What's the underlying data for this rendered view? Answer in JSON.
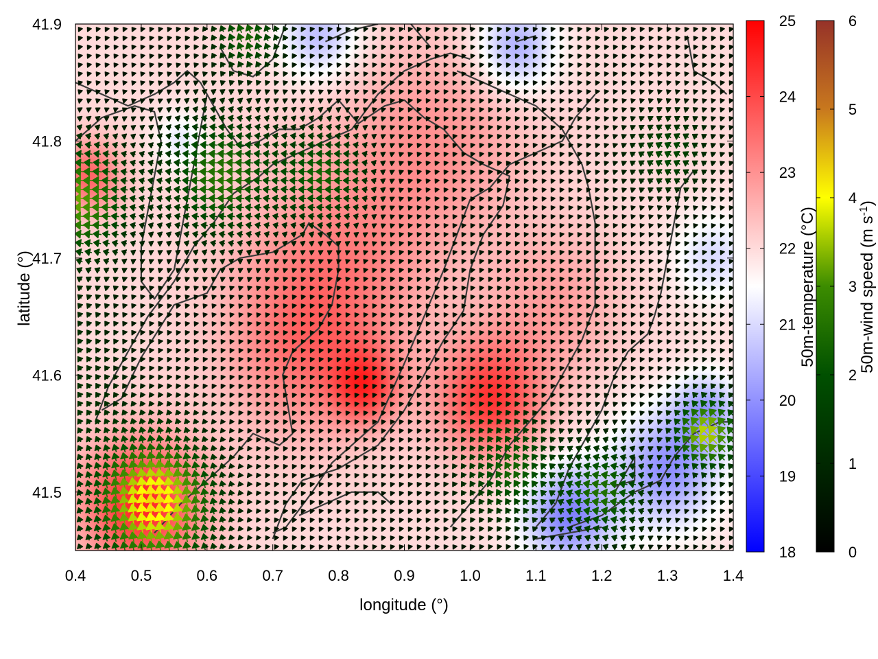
{
  "chart_data": {
    "type": "heatmap",
    "title": "",
    "xlabel": "longitude (°)",
    "ylabel": "latitude (°)",
    "xlim": [
      0.4,
      1.4
    ],
    "ylim": [
      41.45,
      41.9
    ],
    "x_ticks": [
      {
        "value": 0.4,
        "label": "0.4"
      },
      {
        "value": 0.5,
        "label": "0.5"
      },
      {
        "value": 0.6,
        "label": "0.6"
      },
      {
        "value": 0.7,
        "label": "0.7"
      },
      {
        "value": 0.8,
        "label": "0.8"
      },
      {
        "value": 0.9,
        "label": "0.9"
      },
      {
        "value": 1.0,
        "label": "1.0"
      },
      {
        "value": 1.1,
        "label": "1.1"
      },
      {
        "value": 1.2,
        "label": "1.2"
      },
      {
        "value": 1.3,
        "label": "1.3"
      },
      {
        "value": 1.4,
        "label": "1.4"
      }
    ],
    "y_ticks": [
      {
        "value": 41.5,
        "label": "41.5"
      },
      {
        "value": 41.6,
        "label": "41.6"
      },
      {
        "value": 41.7,
        "label": "41.7"
      },
      {
        "value": 41.8,
        "label": "41.8"
      },
      {
        "value": 41.9,
        "label": "41.9"
      }
    ],
    "grid": false,
    "temperature_colorbar": {
      "label": "50m-temperature (°C)",
      "range": [
        18,
        25
      ],
      "ticks": [
        {
          "value": 18,
          "label": "18"
        },
        {
          "value": 19,
          "label": "19"
        },
        {
          "value": 20,
          "label": "20"
        },
        {
          "value": 21,
          "label": "21"
        },
        {
          "value": 22,
          "label": "22"
        },
        {
          "value": 23,
          "label": "23"
        },
        {
          "value": 24,
          "label": "24"
        },
        {
          "value": 25,
          "label": "25"
        }
      ],
      "colors": [
        "#0000ff",
        "#ffffff",
        "#ff0000"
      ],
      "midpoint": 21.5
    },
    "wind_colorbar": {
      "label": "50m-wind speed (m s",
      "label_superscript": "-1",
      "label_suffix": ")",
      "range": [
        0,
        6
      ],
      "ticks": [
        {
          "value": 0,
          "label": "0"
        },
        {
          "value": 1,
          "label": "1"
        },
        {
          "value": 2,
          "label": "2"
        },
        {
          "value": 3,
          "label": "3"
        },
        {
          "value": 4,
          "label": "4"
        },
        {
          "value": 5,
          "label": "5"
        },
        {
          "value": 6,
          "label": "6"
        }
      ],
      "colors": [
        "#000000",
        "#005000",
        "#3c8c00",
        "#ffff00",
        "#c8781e",
        "#963228"
      ],
      "color_stops": [
        0,
        2,
        3,
        4,
        5,
        6
      ]
    },
    "temperature_hotspots": [
      {
        "lon": 0.5,
        "lat": 41.49,
        "temp": 24.5,
        "radius": 0.09
      },
      {
        "lon": 0.42,
        "lat": 41.77,
        "temp": 23.6,
        "radius": 0.05
      },
      {
        "lon": 1.03,
        "lat": 41.58,
        "temp": 24.2,
        "radius": 0.08
      },
      {
        "lon": 0.84,
        "lat": 41.59,
        "temp": 23.8,
        "radius": 0.05
      },
      {
        "lon": 0.8,
        "lat": 41.7,
        "temp": 23.0,
        "radius": 0.15
      },
      {
        "lon": 0.95,
        "lat": 41.8,
        "temp": 22.9,
        "radius": 0.14
      },
      {
        "lon": 0.75,
        "lat": 41.62,
        "temp": 23.2,
        "radius": 0.12
      },
      {
        "lon": 1.13,
        "lat": 41.66,
        "temp": 22.8,
        "radius": 0.1
      },
      {
        "lon": 1.15,
        "lat": 41.48,
        "temp": 19.8,
        "radius": 0.07
      },
      {
        "lon": 1.3,
        "lat": 41.52,
        "temp": 20.0,
        "radius": 0.08
      },
      {
        "lon": 1.36,
        "lat": 41.57,
        "temp": 20.4,
        "radius": 0.05
      },
      {
        "lon": 0.77,
        "lat": 41.89,
        "temp": 20.6,
        "radius": 0.06
      },
      {
        "lon": 1.07,
        "lat": 41.88,
        "temp": 20.3,
        "radius": 0.06
      },
      {
        "lon": 1.37,
        "lat": 41.7,
        "temp": 21.0,
        "radius": 0.06
      },
      {
        "lon": 0.56,
        "lat": 41.8,
        "temp": 21.2,
        "radius": 0.04
      }
    ],
    "temperature_background": 22.0,
    "wind_regions": [
      {
        "lon": 0.52,
        "lat": 41.49,
        "u": -0.6,
        "v": 4.2,
        "radius": 0.09
      },
      {
        "lon": 0.4,
        "lat": 41.75,
        "u": -3.2,
        "v": 0.0,
        "radius": 0.08
      },
      {
        "lon": 0.62,
        "lat": 41.77,
        "u": -2.6,
        "v": 0.1,
        "radius": 0.09
      },
      {
        "lon": 0.78,
        "lat": 41.77,
        "u": -2.2,
        "v": 0.0,
        "radius": 0.07
      },
      {
        "lon": 1.06,
        "lat": 41.52,
        "u": -1.2,
        "v": 2.0,
        "radius": 0.07
      },
      {
        "lon": 1.2,
        "lat": 41.5,
        "u": -2.5,
        "v": 0.4,
        "radius": 0.07
      },
      {
        "lon": 1.36,
        "lat": 41.55,
        "u": -2.6,
        "v": 2.6,
        "radius": 0.05
      },
      {
        "lon": 1.3,
        "lat": 41.79,
        "u": -1.6,
        "v": 0.9,
        "radius": 0.06
      },
      {
        "lon": 0.66,
        "lat": 41.89,
        "u": -0.8,
        "v": 2.2,
        "radius": 0.05
      },
      {
        "lon": 0.3,
        "lat": 41.6,
        "u": -1.0,
        "v": 1.4,
        "radius": 0.15
      }
    ],
    "wind_background": {
      "u": -0.3,
      "v": 0.4
    },
    "contours": [
      [
        [
          0.52,
          41.465
        ],
        [
          0.56,
          41.49
        ],
        [
          0.6,
          41.51
        ],
        [
          0.64,
          41.53
        ],
        [
          0.67,
          41.55
        ],
        [
          0.71,
          41.54
        ],
        [
          0.73,
          41.55
        ],
        [
          0.715,
          41.6
        ],
        [
          0.73,
          41.62
        ],
        [
          0.77,
          41.64
        ],
        [
          0.79,
          41.66
        ],
        [
          0.8,
          41.69
        ],
        [
          0.8,
          41.71
        ],
        [
          0.78,
          41.72
        ],
        [
          0.755,
          41.73
        ],
        [
          0.745,
          41.72
        ],
        [
          0.7,
          41.705
        ],
        [
          0.65,
          41.7
        ],
        [
          0.62,
          41.69
        ],
        [
          0.6,
          41.67
        ],
        [
          0.55,
          41.66
        ],
        [
          0.5,
          41.615
        ],
        [
          0.47,
          41.58
        ],
        [
          0.44,
          41.57
        ]
      ],
      [
        [
          0.7,
          41.46
        ],
        [
          0.72,
          41.49
        ],
        [
          0.745,
          41.51
        ],
        [
          0.8,
          41.52
        ],
        [
          0.86,
          41.54
        ],
        [
          0.9,
          41.57
        ],
        [
          0.93,
          41.6
        ],
        [
          0.96,
          41.63
        ],
        [
          0.99,
          41.655
        ],
        [
          1.0,
          41.69
        ],
        [
          1.02,
          41.72
        ],
        [
          1.05,
          41.745
        ],
        [
          1.06,
          41.77
        ],
        [
          1.02,
          41.78
        ],
        [
          0.99,
          41.79
        ],
        [
          0.96,
          41.81
        ],
        [
          0.93,
          41.82
        ],
        [
          0.9,
          41.835
        ],
        [
          0.87,
          41.83
        ],
        [
          0.83,
          41.815
        ],
        [
          0.8,
          41.835
        ],
        [
          0.77,
          41.82
        ],
        [
          0.74,
          41.81
        ],
        [
          0.71,
          41.81
        ],
        [
          0.68,
          41.8
        ],
        [
          0.65,
          41.795
        ],
        [
          0.63,
          41.81
        ],
        [
          0.62,
          41.82
        ],
        [
          0.61,
          41.83
        ],
        [
          0.6,
          41.84
        ],
        [
          0.59,
          41.85
        ],
        [
          0.57,
          41.86
        ],
        [
          0.55,
          41.85
        ],
        [
          0.52,
          41.84
        ],
        [
          0.48,
          41.83
        ],
        [
          0.44,
          41.84
        ],
        [
          0.4,
          41.85
        ]
      ],
      [
        [
          0.7,
          41.465
        ],
        [
          0.72,
          41.47
        ],
        [
          0.76,
          41.5
        ],
        [
          0.79,
          41.525
        ],
        [
          0.82,
          41.54
        ],
        [
          0.86,
          41.56
        ],
        [
          0.9,
          41.61
        ],
        [
          0.93,
          41.65
        ],
        [
          0.96,
          41.69
        ],
        [
          0.98,
          41.72
        ],
        [
          1.0,
          41.75
        ],
        [
          1.03,
          41.76
        ],
        [
          1.06,
          41.78
        ],
        [
          1.1,
          41.79
        ],
        [
          1.14,
          41.8
        ],
        [
          1.16,
          41.82
        ],
        [
          1.19,
          41.84
        ]
      ],
      [
        [
          0.43,
          41.56
        ],
        [
          0.45,
          41.59
        ],
        [
          0.48,
          41.62
        ],
        [
          0.51,
          41.65
        ],
        [
          0.55,
          41.68
        ],
        [
          0.58,
          41.71
        ],
        [
          0.61,
          41.73
        ],
        [
          0.64,
          41.755
        ],
        [
          0.68,
          41.77
        ],
        [
          0.7,
          41.78
        ],
        [
          0.74,
          41.79
        ],
        [
          0.78,
          41.8
        ],
        [
          0.82,
          41.81
        ],
        [
          0.86,
          41.84
        ],
        [
          0.9,
          41.86
        ],
        [
          0.94,
          41.87
        ],
        [
          0.97,
          41.875
        ],
        [
          1.0,
          41.87
        ]
      ],
      [
        [
          1.1,
          41.47
        ],
        [
          1.13,
          41.49
        ],
        [
          1.15,
          41.52
        ],
        [
          1.17,
          41.54
        ],
        [
          1.2,
          41.57
        ],
        [
          1.22,
          41.6
        ],
        [
          1.24,
          41.62
        ],
        [
          1.27,
          41.635
        ],
        [
          1.28,
          41.65
        ],
        [
          1.29,
          41.67
        ],
        [
          1.3,
          41.7
        ],
        [
          1.31,
          41.73
        ],
        [
          1.32,
          41.76
        ],
        [
          1.34,
          41.775
        ]
      ],
      [
        [
          0.97,
          41.47
        ],
        [
          1.0,
          41.49
        ],
        [
          1.03,
          41.51
        ],
        [
          1.06,
          41.54
        ],
        [
          1.09,
          41.56
        ],
        [
          1.12,
          41.58
        ],
        [
          1.15,
          41.61
        ],
        [
          1.17,
          41.63
        ],
        [
          1.19,
          41.66
        ],
        [
          1.19,
          41.7
        ],
        [
          1.19,
          41.73
        ],
        [
          1.18,
          41.76
        ],
        [
          1.17,
          41.78
        ],
        [
          1.14,
          41.81
        ],
        [
          1.1,
          41.83
        ],
        [
          1.06,
          41.84
        ],
        [
          1.02,
          41.85
        ],
        [
          0.98,
          41.86
        ]
      ],
      [
        [
          0.4,
          41.8
        ],
        [
          0.44,
          41.82
        ],
        [
          0.49,
          41.83
        ],
        [
          0.52,
          41.825
        ],
        [
          0.53,
          41.8
        ],
        [
          0.52,
          41.77
        ],
        [
          0.51,
          41.74
        ],
        [
          0.5,
          41.71
        ],
        [
          0.5,
          41.68
        ],
        [
          0.52,
          41.665
        ],
        [
          0.55,
          41.69
        ],
        [
          0.56,
          41.72
        ],
        [
          0.57,
          41.75
        ],
        [
          0.58,
          41.78
        ],
        [
          0.59,
          41.81
        ],
        [
          0.6,
          41.84
        ]
      ],
      [
        [
          1.15,
          41.47
        ],
        [
          1.2,
          41.48
        ],
        [
          1.25,
          41.5
        ],
        [
          1.29,
          41.51
        ],
        [
          1.31,
          41.53
        ],
        [
          1.34,
          41.55
        ],
        [
          1.38,
          41.56
        ],
        [
          1.4,
          41.56
        ]
      ],
      [
        [
          1.1,
          41.46
        ],
        [
          1.15,
          41.465
        ],
        [
          1.2,
          41.47
        ]
      ],
      [
        [
          0.74,
          41.48
        ],
        [
          0.78,
          41.49
        ],
        [
          0.82,
          41.5
        ],
        [
          0.86,
          41.5
        ],
        [
          0.88,
          41.49
        ]
      ],
      [
        [
          1.22,
          41.505
        ],
        [
          1.25,
          41.51
        ],
        [
          1.25,
          41.53
        ],
        [
          1.24,
          41.52
        ],
        [
          1.22,
          41.5
        ]
      ],
      [
        [
          0.62,
          41.88
        ],
        [
          0.64,
          41.86
        ],
        [
          0.67,
          41.855
        ],
        [
          0.7,
          41.87
        ],
        [
          0.72,
          41.9
        ]
      ],
      [
        [
          1.33,
          41.89
        ],
        [
          1.34,
          41.86
        ],
        [
          1.37,
          41.85
        ],
        [
          1.39,
          41.84
        ]
      ],
      [
        [
          0.78,
          41.885
        ],
        [
          0.82,
          41.895
        ],
        [
          0.86,
          41.9
        ]
      ],
      [
        [
          0.91,
          41.9
        ],
        [
          0.94,
          41.88
        ]
      ],
      [
        [
          1.07,
          41.885
        ],
        [
          1.1,
          41.89
        ]
      ]
    ]
  }
}
